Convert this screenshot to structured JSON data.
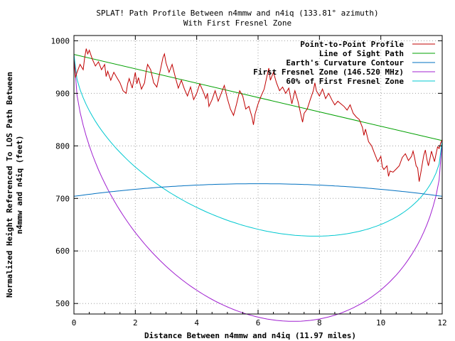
{
  "chart_data": {
    "type": "line",
    "title": "SPLAT! Path Profile Between n4mmw and n4iq (133.81° azimuth)",
    "subtitle": "With First Fresnel Zone",
    "xlabel": "Distance Between n4mmw and n4iq (11.97 miles)",
    "ylabel_line1": "Normalized Height Referenced To LOS Path Between",
    "ylabel_line2": "n4mmw and n4iq (feet)",
    "xlim": [
      0,
      12
    ],
    "ylim": [
      480,
      1010
    ],
    "x_ticks": [
      0,
      2,
      4,
      6,
      8,
      10,
      12
    ],
    "y_ticks": [
      500,
      600,
      700,
      800,
      900,
      1000
    ],
    "grid": true,
    "legend_position": "top-right",
    "series": [
      {
        "name": "Point-to-Point Profile",
        "color": "#c00000",
        "points": [
          [
            0,
            965
          ],
          [
            0.05,
            930
          ],
          [
            0.1,
            940
          ],
          [
            0.2,
            955
          ],
          [
            0.3,
            945
          ],
          [
            0.35,
            968
          ],
          [
            0.4,
            985
          ],
          [
            0.45,
            975
          ],
          [
            0.5,
            982
          ],
          [
            0.6,
            965
          ],
          [
            0.7,
            952
          ],
          [
            0.8,
            960
          ],
          [
            0.9,
            945
          ],
          [
            1.0,
            955
          ],
          [
            1.05,
            932
          ],
          [
            1.1,
            942
          ],
          [
            1.2,
            925
          ],
          [
            1.3,
            940
          ],
          [
            1.4,
            930
          ],
          [
            1.5,
            920
          ],
          [
            1.6,
            905
          ],
          [
            1.7,
            900
          ],
          [
            1.75,
            918
          ],
          [
            1.8,
            928
          ],
          [
            1.9,
            910
          ],
          [
            2.0,
            940
          ],
          [
            2.05,
            918
          ],
          [
            2.1,
            930
          ],
          [
            2.2,
            908
          ],
          [
            2.3,
            920
          ],
          [
            2.35,
            940
          ],
          [
            2.4,
            955
          ],
          [
            2.5,
            945
          ],
          [
            2.6,
            920
          ],
          [
            2.7,
            912
          ],
          [
            2.8,
            940
          ],
          [
            2.9,
            968
          ],
          [
            2.95,
            975
          ],
          [
            3.0,
            958
          ],
          [
            3.1,
            940
          ],
          [
            3.2,
            955
          ],
          [
            3.3,
            932
          ],
          [
            3.4,
            910
          ],
          [
            3.5,
            925
          ],
          [
            3.6,
            908
          ],
          [
            3.7,
            895
          ],
          [
            3.8,
            912
          ],
          [
            3.9,
            888
          ],
          [
            4.0,
            900
          ],
          [
            4.1,
            918
          ],
          [
            4.2,
            905
          ],
          [
            4.3,
            890
          ],
          [
            4.35,
            900
          ],
          [
            4.4,
            875
          ],
          [
            4.5,
            888
          ],
          [
            4.6,
            905
          ],
          [
            4.7,
            885
          ],
          [
            4.8,
            900
          ],
          [
            4.9,
            915
          ],
          [
            5.0,
            890
          ],
          [
            5.1,
            870
          ],
          [
            5.2,
            858
          ],
          [
            5.3,
            880
          ],
          [
            5.4,
            905
          ],
          [
            5.5,
            895
          ],
          [
            5.6,
            870
          ],
          [
            5.7,
            875
          ],
          [
            5.8,
            855
          ],
          [
            5.85,
            840
          ],
          [
            5.9,
            860
          ],
          [
            6.0,
            880
          ],
          [
            6.1,
            895
          ],
          [
            6.2,
            908
          ],
          [
            6.3,
            935
          ],
          [
            6.35,
            948
          ],
          [
            6.4,
            925
          ],
          [
            6.5,
            940
          ],
          [
            6.6,
            920
          ],
          [
            6.7,
            905
          ],
          [
            6.8,
            912
          ],
          [
            6.9,
            900
          ],
          [
            7.0,
            910
          ],
          [
            7.1,
            880
          ],
          [
            7.2,
            905
          ],
          [
            7.3,
            885
          ],
          [
            7.4,
            858
          ],
          [
            7.45,
            845
          ],
          [
            7.5,
            862
          ],
          [
            7.6,
            870
          ],
          [
            7.7,
            888
          ],
          [
            7.8,
            905
          ],
          [
            7.85,
            920
          ],
          [
            7.9,
            905
          ],
          [
            8.0,
            895
          ],
          [
            8.1,
            908
          ],
          [
            8.2,
            890
          ],
          [
            8.3,
            900
          ],
          [
            8.4,
            888
          ],
          [
            8.5,
            878
          ],
          [
            8.6,
            885
          ],
          [
            8.7,
            880
          ],
          [
            8.8,
            875
          ],
          [
            8.9,
            868
          ],
          [
            9.0,
            878
          ],
          [
            9.1,
            862
          ],
          [
            9.2,
            855
          ],
          [
            9.3,
            850
          ],
          [
            9.4,
            835
          ],
          [
            9.45,
            820
          ],
          [
            9.5,
            832
          ],
          [
            9.6,
            808
          ],
          [
            9.7,
            800
          ],
          [
            9.8,
            785
          ],
          [
            9.9,
            770
          ],
          [
            10.0,
            780
          ],
          [
            10.05,
            760
          ],
          [
            10.1,
            755
          ],
          [
            10.2,
            762
          ],
          [
            10.25,
            742
          ],
          [
            10.3,
            752
          ],
          [
            10.4,
            750
          ],
          [
            10.5,
            756
          ],
          [
            10.6,
            762
          ],
          [
            10.7,
            778
          ],
          [
            10.8,
            785
          ],
          [
            10.9,
            772
          ],
          [
            11.0,
            780
          ],
          [
            11.05,
            790
          ],
          [
            11.1,
            778
          ],
          [
            11.15,
            762
          ],
          [
            11.2,
            758
          ],
          [
            11.25,
            732
          ],
          [
            11.3,
            748
          ],
          [
            11.35,
            765
          ],
          [
            11.4,
            782
          ],
          [
            11.45,
            792
          ],
          [
            11.5,
            775
          ],
          [
            11.55,
            762
          ],
          [
            11.6,
            775
          ],
          [
            11.65,
            790
          ],
          [
            11.7,
            780
          ],
          [
            11.75,
            770
          ],
          [
            11.8,
            785
          ],
          [
            11.85,
            798
          ],
          [
            11.9,
            795
          ],
          [
            11.95,
            805
          ],
          [
            12.0,
            812
          ]
        ]
      },
      {
        "name": "Line of Sight Path",
        "color": "#00a000",
        "points": [
          [
            0,
            974
          ],
          [
            12,
            810
          ]
        ]
      },
      {
        "name": "Earth's Curvature Contour",
        "color": "#0070c0",
        "curve": {
          "kind": "parabola",
          "x0": 0,
          "x1": 12,
          "end_value": 704,
          "peak_value": 728
        }
      },
      {
        "name": "First Fresnel Zone (146.520 MHz)",
        "color": "#a020d0",
        "curve": {
          "kind": "fresnel",
          "fraction": 1.0,
          "depth_at_mid": 418
        }
      },
      {
        "name": "60% of First Fresnel Zone",
        "color": "#00c8d0",
        "curve": {
          "kind": "fresnel",
          "fraction": 0.6,
          "depth_at_mid": 418
        }
      }
    ]
  }
}
